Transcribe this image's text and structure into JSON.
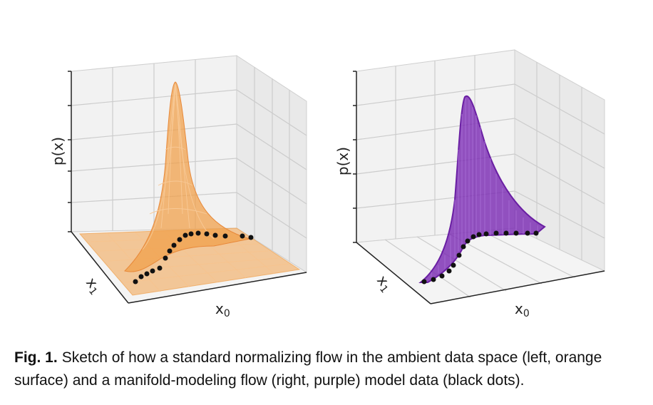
{
  "figure": {
    "panels": [
      {
        "id": "left",
        "description": "standard normalizing flow in ambient space",
        "surface_color": "#F0A04B",
        "labels": {
          "z": "p(x)",
          "x1": "x",
          "x1_sub": "1",
          "x0": "x",
          "x0_sub": "0"
        }
      },
      {
        "id": "right",
        "description": "manifold-modeling flow",
        "surface_color": "#7B2CB3",
        "labels": {
          "z": "p(x)",
          "x1": "x",
          "x1_sub": "1",
          "x0": "x",
          "x0_sub": "0"
        }
      }
    ],
    "data_point_color": "#111111"
  },
  "caption": {
    "label": "Fig. 1.",
    "text": "Sketch of how a standard normalizing flow in the ambient data space (left, orange surface) and a manifold-modeling flow (right, purple) model data (black dots)."
  }
}
